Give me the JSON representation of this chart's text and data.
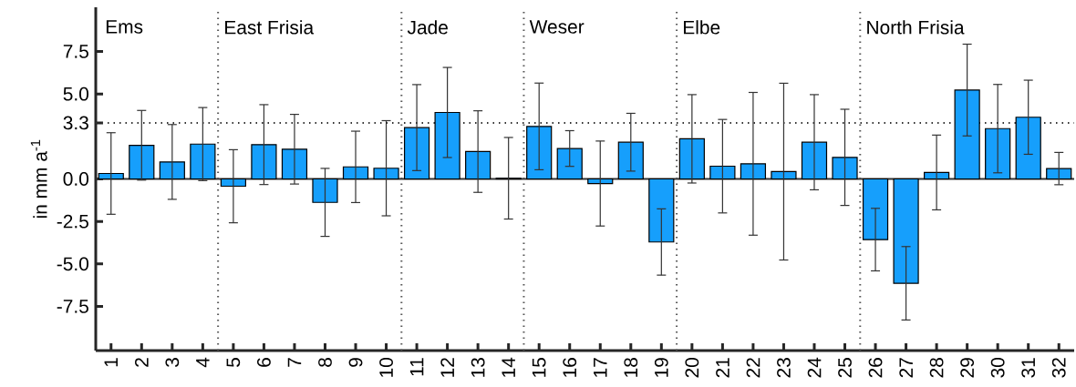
{
  "chart_data": {
    "type": "bar",
    "ylabel": "in mm a$^{-1}$",
    "x": [
      1,
      2,
      3,
      4,
      5,
      6,
      7,
      8,
      9,
      10,
      11,
      12,
      13,
      14,
      15,
      16,
      17,
      18,
      19,
      20,
      21,
      22,
      23,
      24,
      25,
      26,
      27,
      28,
      29,
      30,
      31,
      32
    ],
    "values": [
      0.32,
      1.98,
      1.0,
      2.05,
      -0.43,
      2.02,
      1.75,
      -1.38,
      0.71,
      0.63,
      3.02,
      3.91,
      1.61,
      0.04,
      3.09,
      1.79,
      -0.27,
      2.16,
      -3.71,
      2.36,
      0.75,
      0.89,
      0.43,
      2.16,
      1.27,
      -3.57,
      -6.14,
      0.38,
      5.23,
      2.96,
      3.63,
      0.61
    ],
    "errors": [
      2.4,
      2.05,
      2.2,
      2.15,
      2.15,
      2.35,
      2.05,
      2.0,
      2.1,
      2.8,
      2.53,
      2.65,
      2.4,
      2.4,
      2.55,
      1.05,
      2.5,
      1.7,
      1.95,
      2.6,
      2.75,
      4.2,
      5.2,
      2.8,
      2.83,
      1.84,
      2.16,
      2.2,
      2.7,
      2.6,
      2.18,
      0.95
    ],
    "color": "#169ffc",
    "xlim": [
      0.5,
      32.5
    ],
    "xticks": [
      1,
      2,
      3,
      4,
      5,
      6,
      7,
      8,
      9,
      10,
      11,
      12,
      13,
      14,
      15,
      16,
      17,
      18,
      19,
      20,
      21,
      22,
      23,
      24,
      25,
      26,
      27,
      28,
      29,
      30,
      31,
      32
    ],
    "ylim": [
      -10.1,
      10.1
    ],
    "yticks": [
      {
        "value": -7.5,
        "label": "-7.5"
      },
      {
        "value": -5.0,
        "label": "-5.0"
      },
      {
        "value": -2.5,
        "label": "-2.5"
      },
      {
        "value": 0.0,
        "label": "0.0"
      },
      {
        "value": 3.3,
        "label": "3.3"
      },
      {
        "value": 5.0,
        "label": "5.0"
      },
      {
        "value": 7.5,
        "label": "7.5"
      }
    ],
    "ref_lines": [
      {
        "axis": "y",
        "value": 0,
        "color": "#333333",
        "line_style": "solid"
      },
      {
        "axis": "y",
        "value": 3.3,
        "color": "#333333",
        "line_style": "dotted"
      },
      {
        "axis": "x",
        "value": 4.5,
        "label": "East Frisia",
        "color": "#555555",
        "line_style": "dotted"
      },
      {
        "axis": "x",
        "value": 10.5,
        "label": "Jade",
        "color": "#555555",
        "line_style": "dotted"
      },
      {
        "axis": "x",
        "value": 14.5,
        "label": "Weser",
        "color": "#555555",
        "line_style": "dotted"
      },
      {
        "axis": "x",
        "value": 19.5,
        "label": "Elbe",
        "color": "#555555",
        "line_style": "dotted"
      },
      {
        "axis": "x",
        "value": 25.5,
        "label": "North Frisia",
        "color": "#555555",
        "line_style": "dotted"
      }
    ],
    "annotations": [
      "Ems"
    ]
  }
}
